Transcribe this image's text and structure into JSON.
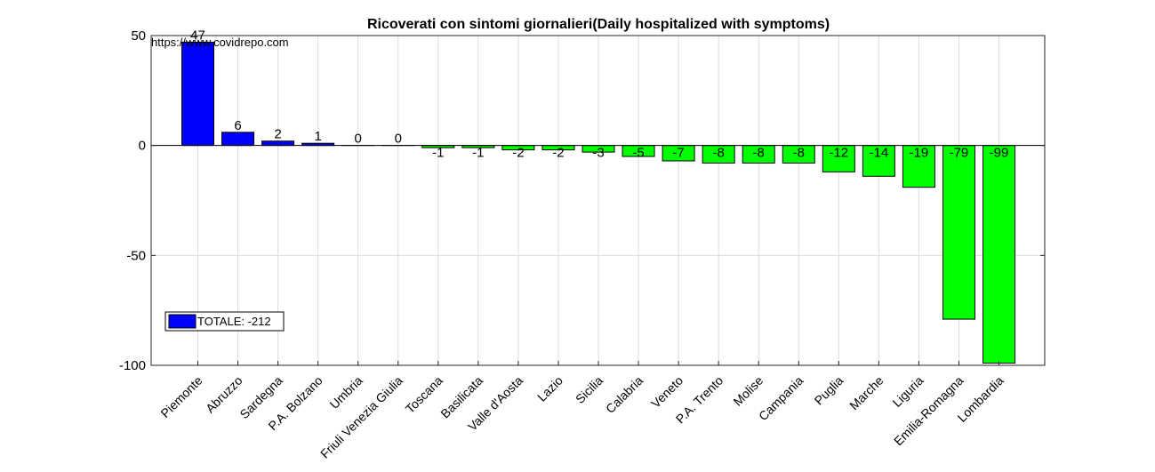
{
  "source_note": "https://www.covidrepo.com",
  "legend": {
    "label": "TOTALE: -212",
    "color": "#0000ff"
  },
  "chart_data": {
    "type": "bar",
    "title": "Ricoverati con sintomi giornalieri(Daily hospitalized with symptoms)",
    "xlabel": "",
    "ylabel": "",
    "ylim": [
      -100,
      50
    ],
    "yticks": [
      -100,
      -50,
      0,
      50
    ],
    "grid": true,
    "legend_position": "bottom-left",
    "positive_color": "#0000ff",
    "negative_color": "#00ff00",
    "categories": [
      "Piemonte",
      "Abruzzo",
      "Sardegna",
      "P.A. Bolzano",
      "Umbria",
      "Friuli Venezia Giulia",
      "Toscana",
      "Basilicata",
      "Valle d'Aosta",
      "Lazio",
      "Sicilia",
      "Calabria",
      "Veneto",
      "P.A. Trento",
      "Molise",
      "Campania",
      "Puglia",
      "Marche",
      "Liguria",
      "Emilia-Romagna",
      "Lombardia"
    ],
    "values": [
      47,
      6,
      2,
      1,
      0,
      0,
      -1,
      -1,
      -2,
      -2,
      -3,
      -5,
      -7,
      -8,
      -8,
      -8,
      -12,
      -14,
      -19,
      -79,
      -99
    ]
  }
}
